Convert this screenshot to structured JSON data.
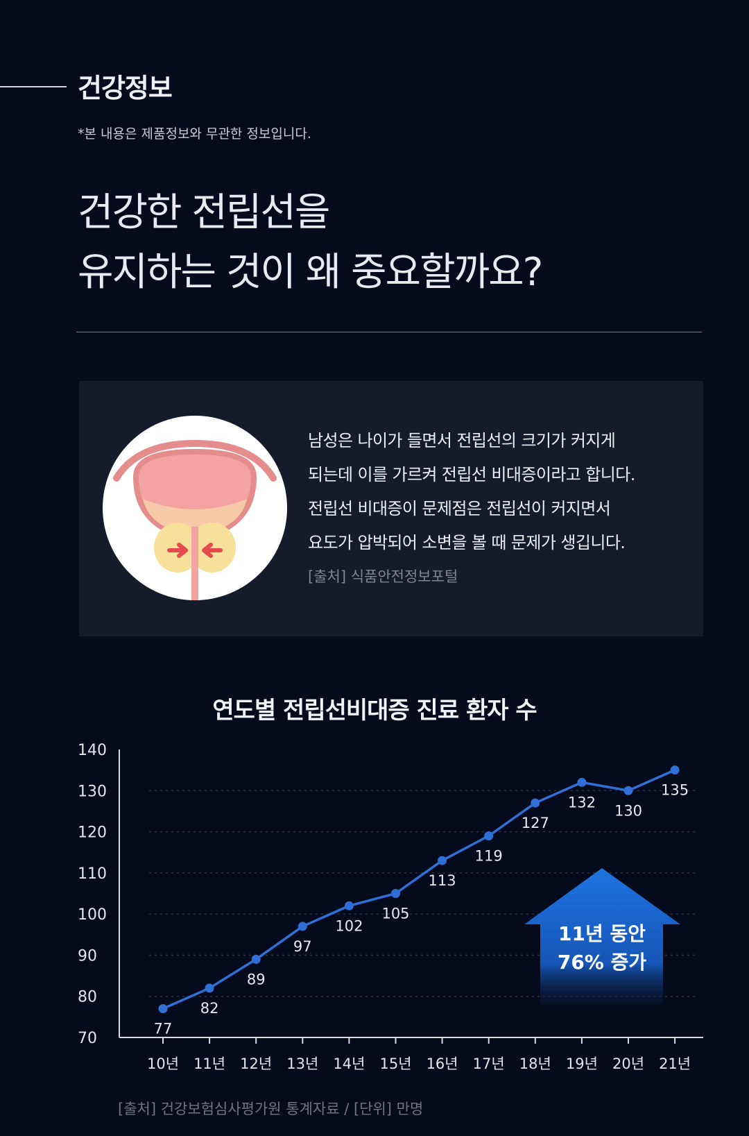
{
  "section": {
    "label": "건강정보"
  },
  "disclaimer": "*본 내용은 제품정보와 무관한 정보입니다.",
  "headline": {
    "line1": "건강한 전립선을",
    "line2": "유지하는 것이 왜 중요할까요?"
  },
  "info": {
    "lines": [
      "남성은 나이가 들면서 전립선의 크기가 커지게",
      "되는데 이를 가르켜 전립선 비대증이라고 합니다.",
      "전립선 비대증이 문제점은 전립선이 커지면서",
      "요도가 압박되어 소변을 볼 때 문제가 생깁니다."
    ],
    "source": "[출처] 식품안전정보포털",
    "illustration_icon": "prostate-compression-icon"
  },
  "chart_data": {
    "type": "line",
    "title": "연도별 전립선비대증 진료 환자 수",
    "categories": [
      "10년",
      "11년",
      "12년",
      "13년",
      "14년",
      "15년",
      "16년",
      "17년",
      "18년",
      "19년",
      "20년",
      "21년"
    ],
    "values": [
      77,
      82,
      89,
      97,
      102,
      105,
      113,
      119,
      127,
      132,
      130,
      135
    ],
    "yticks": [
      70,
      80,
      90,
      100,
      110,
      120,
      130,
      140
    ],
    "ylim": [
      70,
      140
    ],
    "grid": true,
    "line_color": "#2f6fd6",
    "callout": {
      "line1": "11년 동안",
      "line2": "76% 증가",
      "color": "#1e6fd8"
    },
    "source": "[출처] 건강보험심사평가원 통계자료 / [단위] 만명"
  }
}
